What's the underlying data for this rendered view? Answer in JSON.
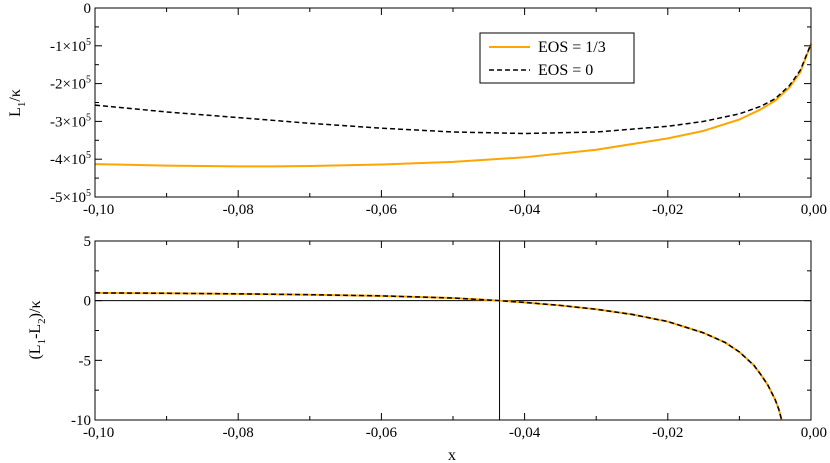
{
  "chart_data": [
    {
      "type": "line",
      "id": "top",
      "ylabel_main": "L",
      "ylabel_sub": "1",
      "ylabel_tail": "/κ",
      "xlim": [
        -0.1,
        0.0
      ],
      "ylim": [
        -500000,
        0
      ],
      "x_ticks": [
        {
          "value": -0.1,
          "label": "-0,10"
        },
        {
          "value": -0.08,
          "label": "-0,08"
        },
        {
          "value": -0.06,
          "label": "-0,06"
        },
        {
          "value": -0.04,
          "label": "-0,04"
        },
        {
          "value": -0.02,
          "label": "-0,02"
        },
        {
          "value": 0.0,
          "label": "0,00"
        }
      ],
      "y_ticks": [
        {
          "value": 0,
          "label": "0",
          "mant": "",
          "exp": ""
        },
        {
          "value": -100000,
          "label": "",
          "mant": "-1×10",
          "exp": "5"
        },
        {
          "value": -200000,
          "label": "",
          "mant": "-2×10",
          "exp": "5"
        },
        {
          "value": -300000,
          "label": "",
          "mant": "-3×10",
          "exp": "5"
        },
        {
          "value": -400000,
          "label": "",
          "mant": "-4×10",
          "exp": "5"
        },
        {
          "value": -500000,
          "label": "",
          "mant": "-5×10",
          "exp": "5"
        }
      ],
      "legend": [
        {
          "label": "EOS = 1/3",
          "color": "#ffa500",
          "dash": "solid"
        },
        {
          "label": "EOS = 0",
          "color": "#000000",
          "dash": "dashed"
        }
      ],
      "series": [
        {
          "name": "EOS = 1/3",
          "color": "#ffa500",
          "dash": "solid",
          "x": [
            -0.1,
            -0.09,
            -0.08,
            -0.075,
            -0.07,
            -0.06,
            -0.05,
            -0.04,
            -0.03,
            -0.02,
            -0.015,
            -0.01,
            -0.007,
            -0.005,
            -0.003,
            -0.0015,
            0.0
          ],
          "y": [
            -413000,
            -417000,
            -419000,
            -419000,
            -418000,
            -414000,
            -407000,
            -395000,
            -375000,
            -345000,
            -325000,
            -295000,
            -268000,
            -245000,
            -210000,
            -170000,
            -95000
          ]
        },
        {
          "name": "EOS = 0",
          "color": "#000000",
          "dash": "dashed",
          "x": [
            -0.1,
            -0.09,
            -0.08,
            -0.07,
            -0.06,
            -0.05,
            -0.04,
            -0.03,
            -0.02,
            -0.015,
            -0.01,
            -0.007,
            -0.005,
            -0.003,
            -0.0015,
            0.0
          ],
          "y": [
            -257000,
            -275000,
            -290000,
            -305000,
            -318000,
            -328000,
            -332000,
            -328000,
            -313000,
            -300000,
            -280000,
            -260000,
            -240000,
            -205000,
            -165000,
            -95000
          ]
        }
      ]
    },
    {
      "type": "line",
      "id": "bottom",
      "xlabel": "x",
      "ylabel_main": "(L",
      "ylabel_sub": "1",
      "ylabel_mid": "-L",
      "ylabel_sub2": "2",
      "ylabel_tail": ")/κ",
      "xlim": [
        -0.1,
        0.0
      ],
      "ylim": [
        -10,
        5
      ],
      "x_ticks": [
        {
          "value": -0.1,
          "label": "-0,10"
        },
        {
          "value": -0.08,
          "label": "-0,08"
        },
        {
          "value": -0.06,
          "label": "-0,06"
        },
        {
          "value": -0.04,
          "label": "-0,04"
        },
        {
          "value": -0.02,
          "label": "-0,02"
        },
        {
          "value": 0.0,
          "label": "0,00"
        }
      ],
      "y_ticks": [
        {
          "value": 5,
          "label": "5"
        },
        {
          "value": 0,
          "label": "0"
        },
        {
          "value": -5,
          "label": "-5"
        },
        {
          "value": -10,
          "label": "-10"
        }
      ],
      "reference_lines": {
        "y_zero": 0,
        "x_vertical": -0.0435
      },
      "series": [
        {
          "name": "EOS = 1/3",
          "color": "#ffa500",
          "dash": "solid",
          "x": [
            -0.1,
            -0.09,
            -0.08,
            -0.07,
            -0.06,
            -0.05,
            -0.0435,
            -0.04,
            -0.035,
            -0.03,
            -0.025,
            -0.02,
            -0.015,
            -0.012,
            -0.01,
            -0.008,
            -0.007,
            -0.006,
            -0.005,
            -0.0045,
            -0.0041
          ],
          "y": [
            0.65,
            0.62,
            0.57,
            0.5,
            0.4,
            0.22,
            0.0,
            -0.15,
            -0.4,
            -0.72,
            -1.15,
            -1.75,
            -2.7,
            -3.5,
            -4.3,
            -5.4,
            -6.2,
            -7.1,
            -8.3,
            -9.1,
            -10.0
          ]
        },
        {
          "name": "EOS = 0",
          "color": "#000000",
          "dash": "dashed",
          "x": [
            -0.1,
            -0.09,
            -0.08,
            -0.07,
            -0.06,
            -0.05,
            -0.0435,
            -0.04,
            -0.035,
            -0.03,
            -0.025,
            -0.02,
            -0.015,
            -0.012,
            -0.01,
            -0.008,
            -0.007,
            -0.006,
            -0.005,
            -0.0045,
            -0.0041
          ],
          "y": [
            0.65,
            0.62,
            0.57,
            0.5,
            0.4,
            0.22,
            0.0,
            -0.15,
            -0.4,
            -0.72,
            -1.15,
            -1.75,
            -2.7,
            -3.5,
            -4.3,
            -5.4,
            -6.2,
            -7.1,
            -8.3,
            -9.1,
            -10.0
          ]
        }
      ]
    }
  ]
}
